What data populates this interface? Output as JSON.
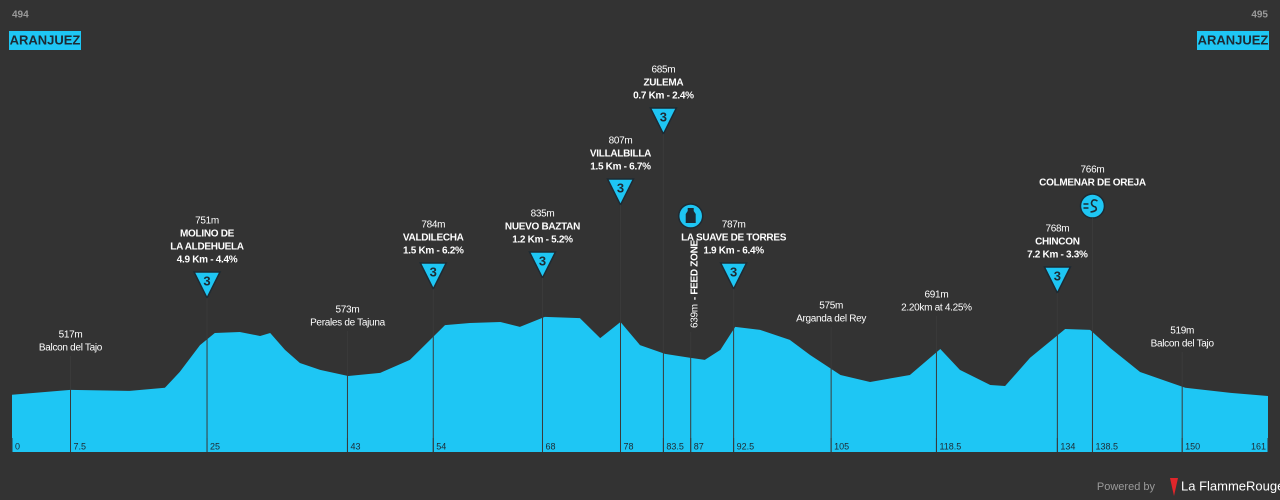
{
  "header": {
    "start_number": 494,
    "start_name": "ARANJUEZ",
    "finish_number": 495,
    "finish_name": "ARANJUEZ"
  },
  "chart_data": {
    "type": "area",
    "color": "#1ec6f4",
    "x": [
      0,
      7.5,
      15.1,
      19.6,
      21.5,
      24.1,
      26,
      29.2,
      31.8,
      33.1,
      35,
      36.9,
      39.5,
      43.1,
      47.2,
      51,
      53.6,
      55.5,
      58.7,
      62.6,
      65.1,
      68.3,
      72.8,
      75.4,
      78,
      80.5,
      83.7,
      86.9,
      88.8,
      90.8,
      92.7,
      95.9,
      99.7,
      102.3,
      106.2,
      110,
      115.1,
      119,
      121.5,
      125.4,
      127.3,
      130.5,
      135,
      138.2,
      140.8,
      144.6,
      150.4,
      156.2,
      161
    ],
    "values": [
      496,
      517,
      513,
      526,
      594,
      710,
      762,
      766,
      749,
      762,
      689,
      633,
      603,
      577,
      590,
      646,
      732,
      796,
      805,
      809,
      788,
      831,
      826,
      740,
      809,
      710,
      672,
      655,
      646,
      689,
      788,
      775,
      732,
      667,
      581,
      551,
      581,
      693,
      603,
      538,
      534,
      655,
      779,
      775,
      697,
      594,
      526,
      504,
      491
    ],
    "xlim": [
      0,
      161
    ],
    "ylim": [
      250,
      1050
    ],
    "xticks": [
      0,
      7.5,
      25,
      43,
      54,
      68,
      78,
      83.5,
      87,
      92.5,
      105,
      118.5,
      134,
      138.5,
      150,
      161
    ],
    "waypoints": [
      {
        "km": 7.5,
        "elevation": 517,
        "elevation_label": "517m",
        "name": [
          "Balcon del Tajo"
        ]
      },
      {
        "km": 25,
        "elevation": 751,
        "elevation_label": "751m",
        "name": [
          "MOLINO DE",
          "LA ALDEHUELA"
        ],
        "detail": "4.9 Km - 4.4%",
        "category": 3
      },
      {
        "km": 43,
        "elevation": 573,
        "elevation_label": "573m",
        "name": [
          "Perales de Tajuna"
        ]
      },
      {
        "km": 54,
        "elevation": 784,
        "elevation_label": "784m",
        "name": [
          "VALDILECHA"
        ],
        "detail": "1.5 Km - 6.2%",
        "category": 3
      },
      {
        "km": 68,
        "elevation": 835,
        "elevation_label": "835m",
        "name": [
          "NUEVO BAZTAN"
        ],
        "detail": "1.2 Km - 5.2%",
        "category": 3
      },
      {
        "km": 78,
        "elevation": 807,
        "elevation_label": "807m",
        "name": [
          "VILLALBILLA"
        ],
        "detail": "1.5 Km - 6.7%",
        "category": 3
      },
      {
        "km": 83.5,
        "elevation": 685,
        "elevation_label": "685m",
        "name": [
          "ZULEMA"
        ],
        "detail": "0.7 Km - 2.4%",
        "category": 3
      },
      {
        "km": 87,
        "elevation": 639,
        "elevation_label": "639m",
        "name": [
          "- FEED ZONE"
        ]
      },
      {
        "km": 92.5,
        "elevation": 787,
        "elevation_label": "787m",
        "name": [
          "LA SUAVE DE TORRES"
        ],
        "detail": "1.9 Km - 6.4%",
        "category": 3
      },
      {
        "km": 105,
        "elevation": 575,
        "elevation_label": "575m",
        "name": [
          "Arganda del Rey"
        ]
      },
      {
        "km": 118.5,
        "elevation": 691,
        "elevation_label": "691m",
        "name": [
          "2.20km at 4.25%"
        ]
      },
      {
        "km": 134,
        "elevation": 768,
        "elevation_label": "768m",
        "name": [
          "CHINCON"
        ],
        "detail": "7.2 Km - 3.3%",
        "category": 3
      },
      {
        "km": 138.5,
        "elevation": 766,
        "elevation_label": "766m",
        "name": [
          "COLMENAR DE OREJA"
        ]
      },
      {
        "km": 150,
        "elevation": 519,
        "elevation_label": "519m",
        "name": [
          "Balcon del Tajo"
        ]
      }
    ]
  },
  "footer": {
    "powered": "Powered by",
    "brand": "La FlammeRouge"
  }
}
